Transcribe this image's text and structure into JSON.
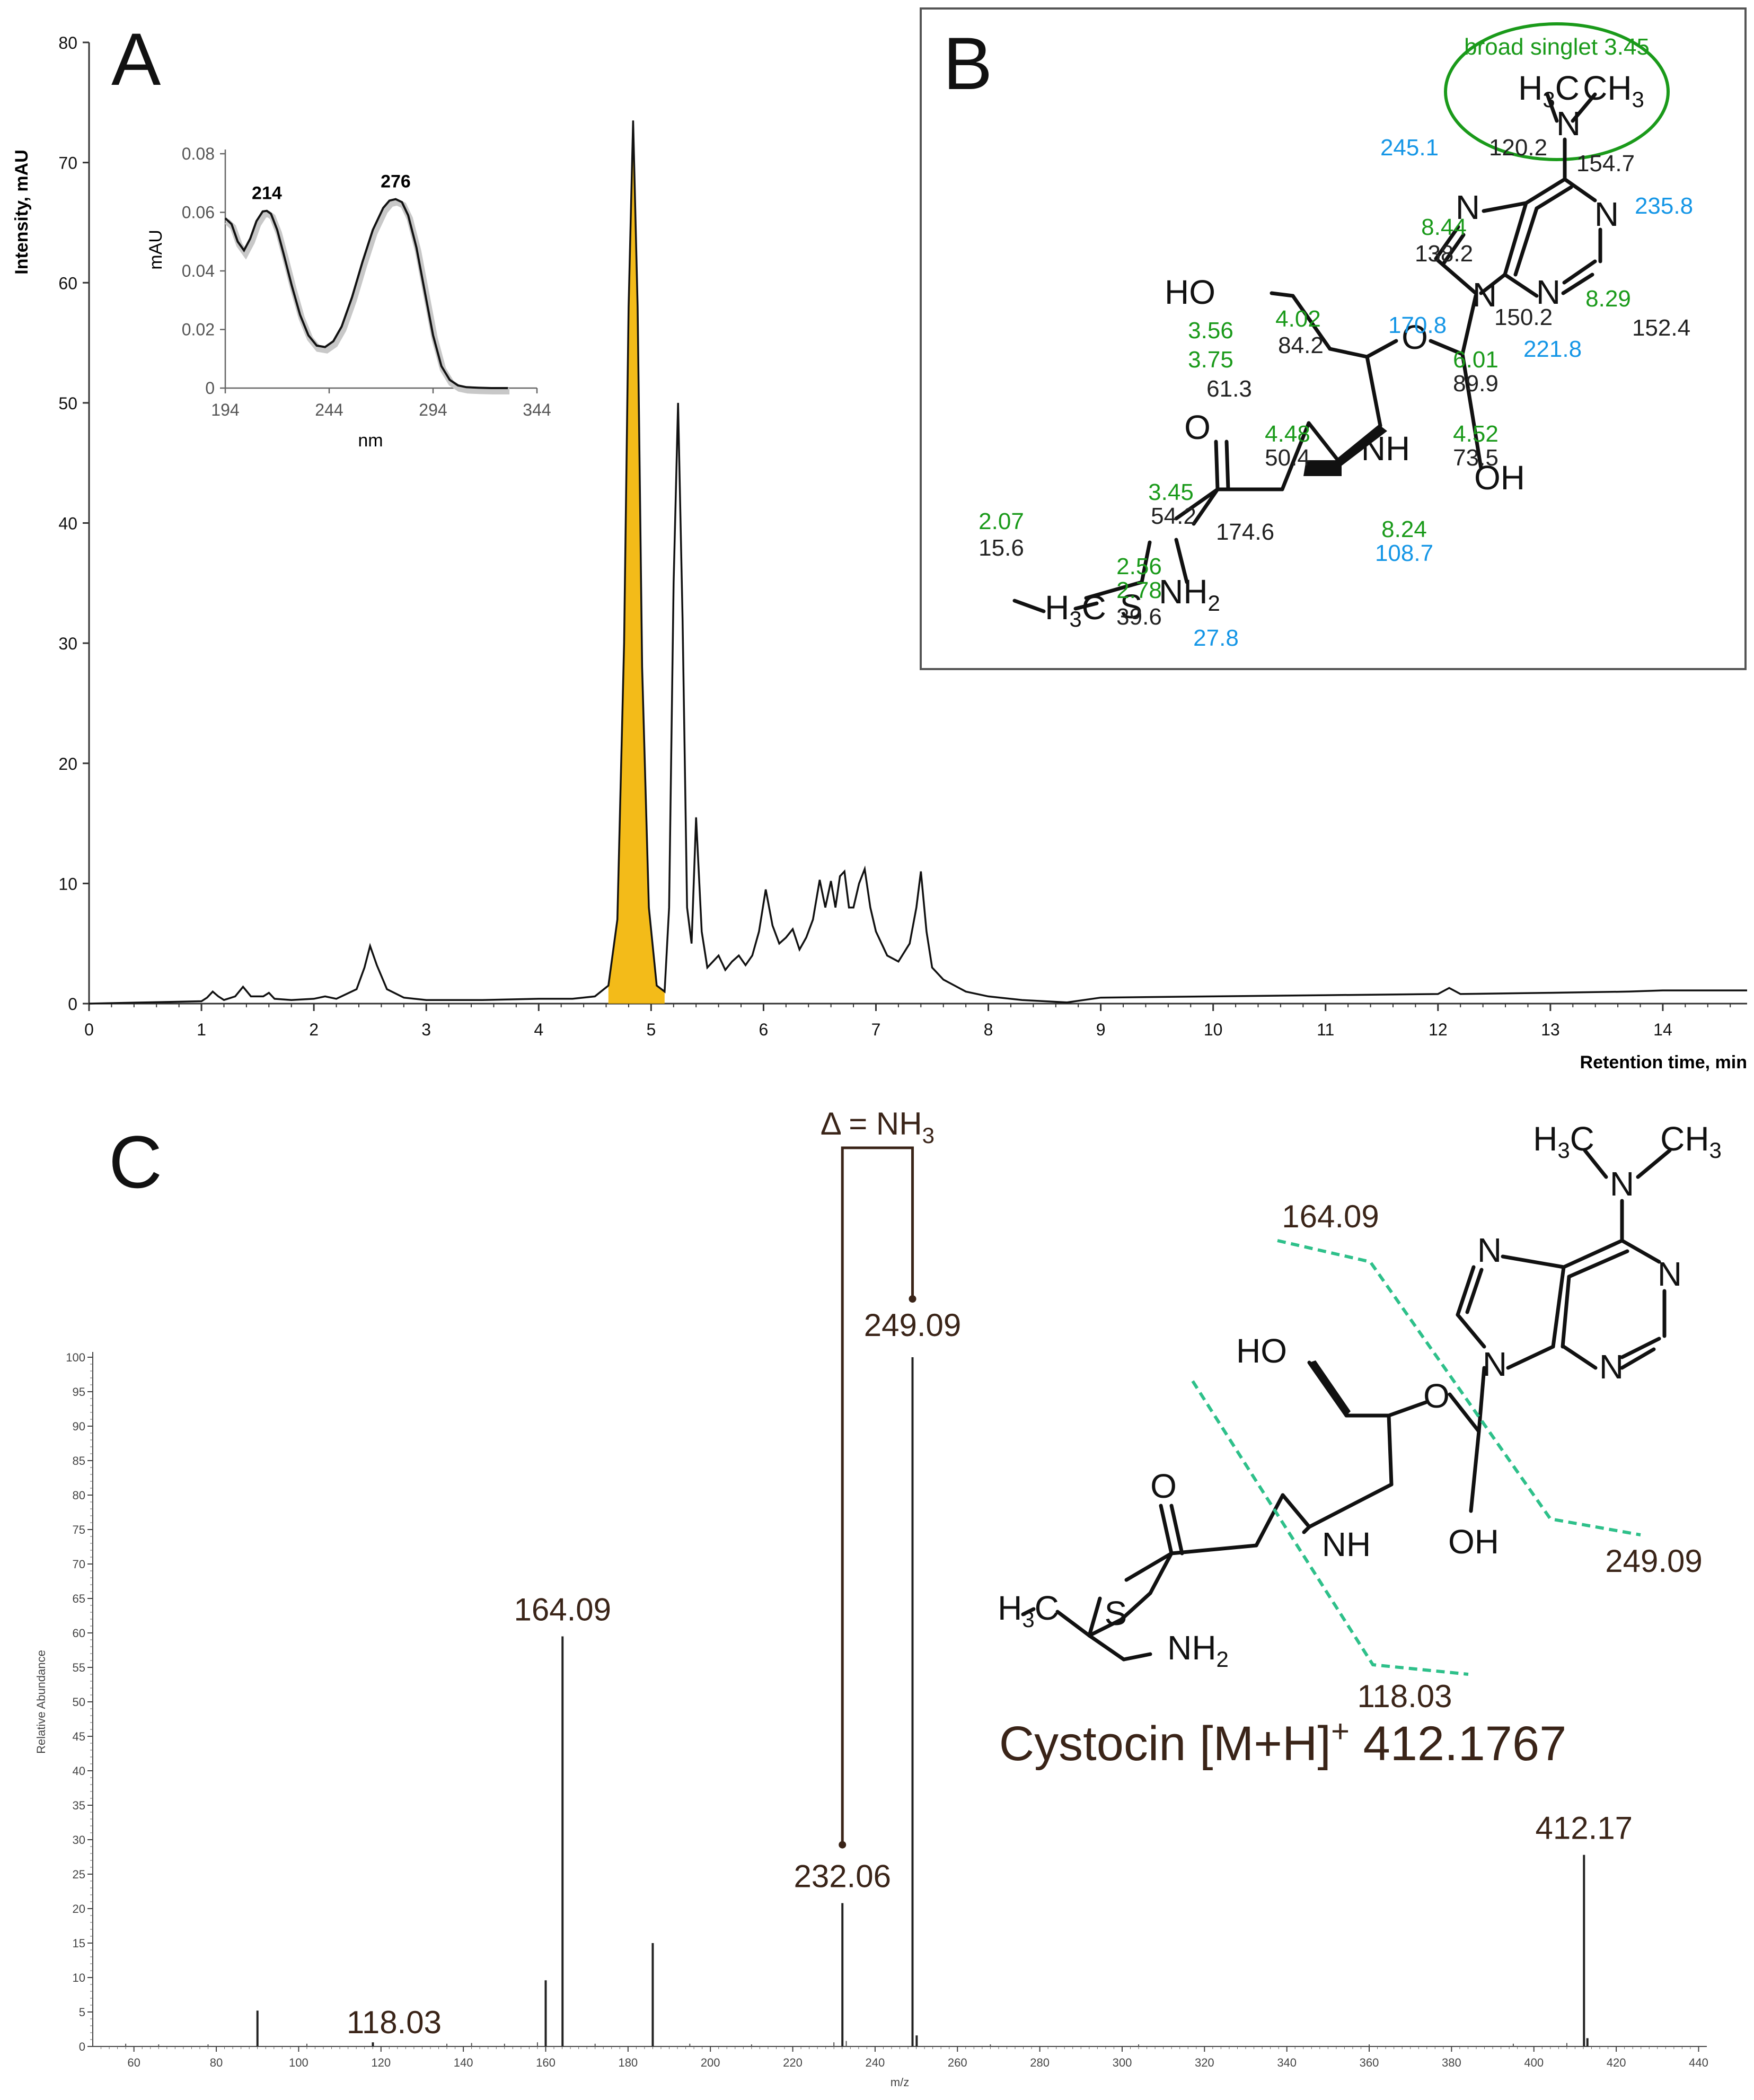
{
  "panels": {
    "a": "A",
    "b": "B",
    "c": "C"
  },
  "colors": {
    "trace": "#111111",
    "highlight_fill": "#f2b400",
    "nmr_1h": "#1a9a1a",
    "nmr_15n": "#1596e6",
    "nmr_13c": "#222222",
    "fragment_line": "#2ec08a",
    "ms_label": "#3a2418",
    "box_border": "#555555"
  },
  "chart_data": [
    {
      "id": "chromatogram",
      "type": "line",
      "xlabel": "Retention time, min",
      "ylabel": "Intensity, mAU",
      "xlim": [
        0,
        14.75
      ],
      "ylim": [
        0,
        80
      ],
      "x_ticks": [
        0,
        1,
        2,
        3,
        4,
        5,
        6,
        7,
        8,
        9,
        10,
        11,
        12,
        13,
        14
      ],
      "y_ticks": [
        0,
        10,
        20,
        30,
        40,
        50,
        60,
        70,
        80
      ],
      "highlighted_peak": {
        "x_start": 4.62,
        "x_end": 5.12,
        "apex_x": 4.84,
        "apex_y": 73.5
      },
      "x": [
        0,
        0.5,
        1.0,
        1.05,
        1.1,
        1.15,
        1.2,
        1.3,
        1.37,
        1.44,
        1.55,
        1.6,
        1.65,
        1.8,
        2.0,
        2.1,
        2.2,
        2.38,
        2.45,
        2.5,
        2.56,
        2.65,
        2.8,
        3.0,
        3.5,
        4.0,
        4.3,
        4.5,
        4.62,
        4.7,
        4.76,
        4.8,
        4.84,
        4.88,
        4.92,
        4.98,
        5.05,
        5.12,
        5.16,
        5.2,
        5.24,
        5.28,
        5.32,
        5.36,
        5.4,
        5.45,
        5.5,
        5.55,
        5.6,
        5.66,
        5.72,
        5.78,
        5.84,
        5.9,
        5.96,
        6.02,
        6.08,
        6.14,
        6.2,
        6.26,
        6.32,
        6.38,
        6.44,
        6.5,
        6.55,
        6.6,
        6.64,
        6.68,
        6.72,
        6.76,
        6.8,
        6.85,
        6.9,
        6.95,
        7.0,
        7.1,
        7.2,
        7.3,
        7.36,
        7.4,
        7.45,
        7.5,
        7.6,
        7.7,
        7.8,
        8.0,
        8.3,
        8.7,
        9.0,
        10.0,
        11.0,
        12.0,
        12.1,
        12.2,
        13.0,
        13.7,
        14.0,
        14.75
      ],
      "y": [
        0,
        0.1,
        0.2,
        0.5,
        1.0,
        0.6,
        0.3,
        0.6,
        1.4,
        0.6,
        0.6,
        0.9,
        0.4,
        0.3,
        0.4,
        0.6,
        0.4,
        1.2,
        3.0,
        4.8,
        3.2,
        1.2,
        0.5,
        0.3,
        0.3,
        0.4,
        0.4,
        0.6,
        1.5,
        7,
        30,
        58,
        73.5,
        58,
        28,
        8,
        1.5,
        1.0,
        8,
        35,
        50,
        32,
        8,
        5,
        15.5,
        6,
        3,
        3.5,
        4,
        2.8,
        3.5,
        4,
        3.2,
        4,
        6,
        9.5,
        6.5,
        5,
        5.5,
        6.2,
        4.5,
        5.5,
        7,
        10.3,
        8,
        10.2,
        8,
        10.6,
        11.0,
        8,
        8,
        10,
        11.2,
        8,
        6,
        4,
        3.5,
        5,
        8,
        11.0,
        6,
        3,
        2,
        1.5,
        1.0,
        0.6,
        0.3,
        0.1,
        0.5,
        0.6,
        0.7,
        0.8,
        1.3,
        0.8,
        0.9,
        1.0,
        1.1,
        1.1
      ]
    },
    {
      "id": "uv_inset",
      "type": "line",
      "xlabel": "nm",
      "ylabel": "mAU",
      "xlim": [
        194,
        344
      ],
      "ylim": [
        0,
        0.08
      ],
      "x_ticks": [
        194,
        244,
        294,
        344
      ],
      "y_ticks": [
        0,
        0.02,
        0.04,
        0.06,
        0.08
      ],
      "annotations": [
        {
          "x": 214,
          "y": 0.0605,
          "label": "214"
        },
        {
          "x": 276,
          "y": 0.0645,
          "label": "276"
        }
      ],
      "x": [
        194,
        197,
        200,
        203,
        206,
        209,
        212,
        214,
        216,
        219,
        222,
        226,
        230,
        234,
        238,
        242,
        246,
        250,
        255,
        260,
        265,
        270,
        273,
        276,
        279,
        282,
        286,
        290,
        294,
        298,
        302,
        306,
        310,
        316,
        322,
        330
      ],
      "y": [
        0.058,
        0.056,
        0.05,
        0.047,
        0.051,
        0.057,
        0.0603,
        0.0605,
        0.0595,
        0.054,
        0.046,
        0.035,
        0.025,
        0.018,
        0.0145,
        0.014,
        0.016,
        0.021,
        0.031,
        0.043,
        0.054,
        0.0615,
        0.064,
        0.0645,
        0.0635,
        0.059,
        0.048,
        0.033,
        0.018,
        0.0075,
        0.0028,
        0.0009,
        0.0003,
        0.0001,
        0.0,
        0.0
      ]
    },
    {
      "id": "ms2_spectrum",
      "type": "bar",
      "xlabel": "m/z",
      "ylabel": "Relative Abundance",
      "xlim": [
        50,
        442
      ],
      "ylim": [
        0,
        100
      ],
      "x_ticks": [
        60,
        80,
        100,
        120,
        140,
        160,
        180,
        200,
        220,
        240,
        260,
        280,
        300,
        320,
        340,
        360,
        380,
        400,
        420,
        440
      ],
      "y_ticks": [
        0,
        5,
        10,
        15,
        20,
        25,
        30,
        35,
        40,
        45,
        50,
        55,
        60,
        65,
        70,
        75,
        80,
        85,
        90,
        95,
        100
      ],
      "x": [
        90.0,
        118.03,
        160.0,
        164.09,
        186.0,
        232.06,
        249.09,
        250.1,
        412.17,
        413.0
      ],
      "y": [
        5.2,
        0.6,
        9.6,
        59.5,
        15.0,
        20.8,
        100,
        1.6,
        27.8,
        1.2
      ],
      "labels": [
        {
          "x": 118.03,
          "text": "118.03"
        },
        {
          "x": 164.09,
          "text": "164.09"
        },
        {
          "x": 232.06,
          "text": "232.06"
        },
        {
          "x": 249.09,
          "text": "249.09"
        },
        {
          "x": 412.17,
          "text": "412.17"
        }
      ],
      "delta_label": "Δ = NH",
      "delta_sub": "3"
    }
  ],
  "structure_b": {
    "oval_text": "broad singlet 3.45",
    "n_shifts": [
      "245.1",
      "235.8",
      "170.8",
      "221.8",
      "108.7",
      "27.8"
    ],
    "h_shifts": [
      "8.44",
      "8.29",
      "4.02",
      "3.56",
      "3.75",
      "6.01",
      "4.48",
      "4.52",
      "3.45",
      "2.07",
      "2.56",
      "2.78",
      "8.24"
    ],
    "c_shifts": [
      "120.2",
      "154.7",
      "138.2",
      "150.2",
      "152.4",
      "84.2",
      "61.3",
      "89.9",
      "50.4",
      "73.5",
      "54.2",
      "174.6",
      "15.6",
      "39.6"
    ]
  },
  "structure_c": {
    "fragments": [
      "164.09",
      "249.09",
      "118.03"
    ],
    "compound_name": "Cystocin [M+H]",
    "compound_charge": "+",
    "compound_mass": "412.1767"
  }
}
